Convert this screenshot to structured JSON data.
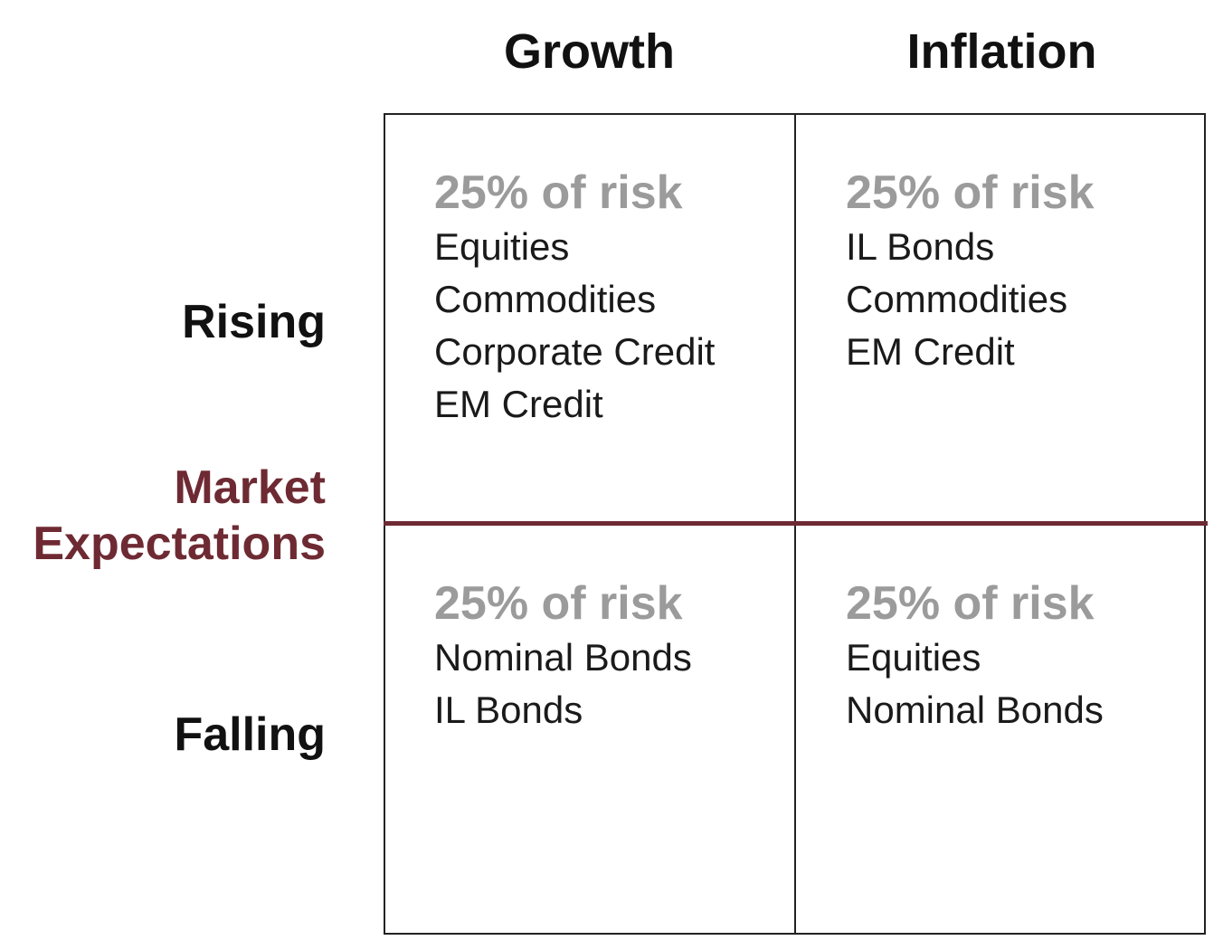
{
  "columns": [
    "Growth",
    "Inflation"
  ],
  "rows": [
    "Rising",
    "Falling"
  ],
  "axis_title": [
    "Market",
    "Expectations"
  ],
  "colors": {
    "accent": "#6e2a33",
    "risk_text": "#9b9b9b",
    "grid": "#222222"
  },
  "cells": {
    "growth_rising": {
      "risk": "25% of risk",
      "items": [
        "Equities",
        "Commodities",
        "Corporate Credit",
        "EM Credit"
      ]
    },
    "inflation_rising": {
      "risk": "25% of risk",
      "items": [
        "IL Bonds",
        "Commodities",
        "EM Credit"
      ]
    },
    "growth_falling": {
      "risk": "25% of risk",
      "items": [
        "Nominal Bonds",
        "IL Bonds"
      ]
    },
    "inflation_falling": {
      "risk": "25% of risk",
      "items": [
        "Equities",
        "Nominal Bonds"
      ]
    }
  }
}
